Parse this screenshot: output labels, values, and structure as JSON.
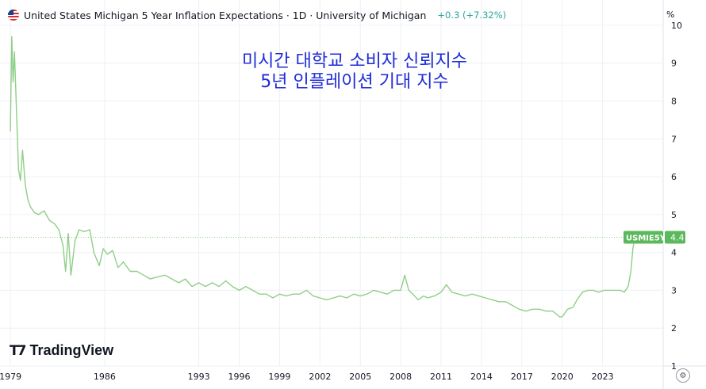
{
  "header": {
    "title": "United States Michigan 5 Year Inflation Expectations · 1D · University of Michigan",
    "change": "+0.3 (+7.32%)",
    "flag_icon": "us-flag-icon"
  },
  "axis_unit": "%",
  "brand": {
    "logo_icon": "tradingview-logo-icon",
    "name": "TradingView"
  },
  "colors": {
    "line": "#8fcf87",
    "price_label": "#5cb85c",
    "grid": "#eef0f4",
    "annotation": "#1f2bd6",
    "change": "#26a69a"
  },
  "chart_data": {
    "type": "line",
    "title": "",
    "annotation": [
      "미시간 대학교 소비자 신뢰지수",
      "5년 인플레이션 기대 지수"
    ],
    "xlabel": "",
    "ylabel": "",
    "ylim": [
      1,
      10.5
    ],
    "xlim": [
      1978.7,
      2027.5
    ],
    "y_ticks": [
      1,
      2,
      3,
      4,
      5,
      6,
      7,
      8,
      9,
      10
    ],
    "x_ticks": [
      "1979",
      "1986",
      "1993",
      "1996",
      "1999",
      "2002",
      "2005",
      "2008",
      "2011",
      "2014",
      "2017",
      "2020",
      "2023"
    ],
    "x_tick_positions": [
      1979,
      1986,
      1993,
      1996,
      1999,
      2002,
      2005,
      2008,
      2011,
      2014,
      2017,
      2020,
      2023
    ],
    "grid": true,
    "series": [
      {
        "name": "",
        "label": "USMIE5Y",
        "last_value": "4.4",
        "last_numeric": 4.4,
        "points": [
          [
            1979.0,
            7.2
          ],
          [
            1979.1,
            9.7
          ],
          [
            1979.2,
            8.5
          ],
          [
            1979.3,
            9.3
          ],
          [
            1979.45,
            7.8
          ],
          [
            1979.6,
            6.2
          ],
          [
            1979.75,
            5.9
          ],
          [
            1979.9,
            6.7
          ],
          [
            1980.1,
            5.8
          ],
          [
            1980.3,
            5.4
          ],
          [
            1980.5,
            5.2
          ],
          [
            1980.8,
            5.05
          ],
          [
            1981.1,
            5.0
          ],
          [
            1981.5,
            5.1
          ],
          [
            1981.9,
            4.85
          ],
          [
            1982.3,
            4.75
          ],
          [
            1982.6,
            4.6
          ],
          [
            1982.9,
            4.2
          ],
          [
            1983.1,
            3.5
          ],
          [
            1983.3,
            4.5
          ],
          [
            1983.5,
            3.4
          ],
          [
            1983.8,
            4.3
          ],
          [
            1984.1,
            4.6
          ],
          [
            1984.5,
            4.55
          ],
          [
            1984.9,
            4.6
          ],
          [
            1985.2,
            4.0
          ],
          [
            1985.6,
            3.65
          ],
          [
            1985.9,
            4.1
          ],
          [
            1986.2,
            3.95
          ],
          [
            1986.6,
            4.05
          ],
          [
            1987.0,
            3.6
          ],
          [
            1987.4,
            3.75
          ],
          [
            1987.9,
            3.5
          ],
          [
            1988.4,
            3.5
          ],
          [
            1988.9,
            3.4
          ],
          [
            1989.4,
            3.3
          ],
          [
            1989.9,
            3.35
          ],
          [
            1990.5,
            3.4
          ],
          [
            1991.0,
            3.3
          ],
          [
            1991.5,
            3.2
          ],
          [
            1992.0,
            3.3
          ],
          [
            1992.5,
            3.1
          ],
          [
            1993.0,
            3.2
          ],
          [
            1993.5,
            3.1
          ],
          [
            1994.0,
            3.2
          ],
          [
            1994.5,
            3.1
          ],
          [
            1995.0,
            3.25
          ],
          [
            1995.5,
            3.1
          ],
          [
            1996.0,
            3.0
          ],
          [
            1996.5,
            3.1
          ],
          [
            1997.0,
            3.0
          ],
          [
            1997.5,
            2.9
          ],
          [
            1998.0,
            2.9
          ],
          [
            1998.5,
            2.8
          ],
          [
            1999.0,
            2.9
          ],
          [
            1999.5,
            2.85
          ],
          [
            2000.0,
            2.9
          ],
          [
            2000.5,
            2.9
          ],
          [
            2001.0,
            3.0
          ],
          [
            2001.5,
            2.85
          ],
          [
            2002.0,
            2.8
          ],
          [
            2002.5,
            2.75
          ],
          [
            2003.0,
            2.8
          ],
          [
            2003.5,
            2.85
          ],
          [
            2004.0,
            2.8
          ],
          [
            2004.5,
            2.9
          ],
          [
            2005.0,
            2.85
          ],
          [
            2005.5,
            2.9
          ],
          [
            2006.0,
            3.0
          ],
          [
            2006.5,
            2.95
          ],
          [
            2007.0,
            2.9
          ],
          [
            2007.5,
            3.0
          ],
          [
            2008.0,
            3.0
          ],
          [
            2008.3,
            3.4
          ],
          [
            2008.6,
            3.0
          ],
          [
            2008.9,
            2.9
          ],
          [
            2009.3,
            2.75
          ],
          [
            2009.7,
            2.85
          ],
          [
            2010.0,
            2.8
          ],
          [
            2010.5,
            2.85
          ],
          [
            2011.0,
            2.95
          ],
          [
            2011.4,
            3.15
          ],
          [
            2011.8,
            2.95
          ],
          [
            2012.3,
            2.9
          ],
          [
            2012.8,
            2.85
          ],
          [
            2013.3,
            2.9
          ],
          [
            2013.8,
            2.85
          ],
          [
            2014.3,
            2.8
          ],
          [
            2014.8,
            2.75
          ],
          [
            2015.3,
            2.7
          ],
          [
            2015.8,
            2.7
          ],
          [
            2016.3,
            2.6
          ],
          [
            2016.8,
            2.5
          ],
          [
            2017.3,
            2.45
          ],
          [
            2017.8,
            2.5
          ],
          [
            2018.3,
            2.5
          ],
          [
            2018.8,
            2.45
          ],
          [
            2019.3,
            2.45
          ],
          [
            2019.8,
            2.3
          ],
          [
            2020.0,
            2.3
          ],
          [
            2020.4,
            2.5
          ],
          [
            2020.8,
            2.55
          ],
          [
            2021.1,
            2.75
          ],
          [
            2021.5,
            2.95
          ],
          [
            2021.9,
            3.0
          ],
          [
            2022.3,
            3.0
          ],
          [
            2022.7,
            2.95
          ],
          [
            2023.1,
            3.0
          ],
          [
            2023.5,
            3.0
          ],
          [
            2023.9,
            3.0
          ],
          [
            2024.3,
            3.0
          ],
          [
            2024.6,
            2.95
          ],
          [
            2024.9,
            3.1
          ],
          [
            2025.1,
            3.5
          ],
          [
            2025.25,
            4.1
          ],
          [
            2025.4,
            4.4
          ]
        ]
      }
    ]
  }
}
